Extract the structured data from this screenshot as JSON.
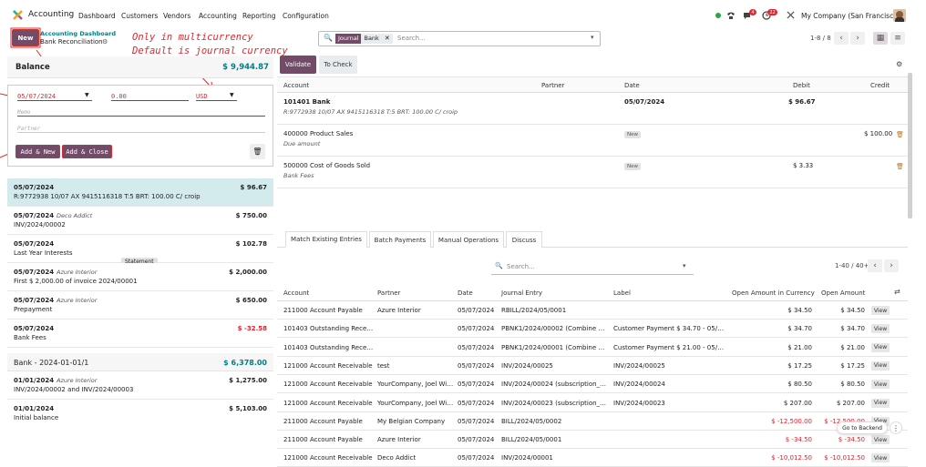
{
  "topbar": {
    "app_name": "Accounting",
    "menus": [
      "Dashboard",
      "Customers",
      "Vendors",
      "Accounting",
      "Reporting",
      "Configuration"
    ],
    "chat_badge": "4",
    "activity_badge": "22",
    "company": "My Company (San Francisco)"
  },
  "control": {
    "new_label": "New",
    "breadcrumb_parent": "Accounting Dashboard",
    "breadcrumb_current": "Bank Reconciliation",
    "annotation_line1": "Only in multicurrency",
    "annotation_line2": "Default is journal currency",
    "facet_label": "Journal",
    "facet_value": "Bank",
    "search_placeholder": "Search...",
    "pager": "1-8 / 8"
  },
  "left": {
    "balance_label": "Balance",
    "balance_value": "$ 9,944.87",
    "form": {
      "date": "05/07/2024",
      "amount": "0.00",
      "currency": "USD",
      "memo_placeholder": "Memo",
      "partner_placeholder": "Partner",
      "add_new": "Add & New",
      "add_close": "Add & Close"
    },
    "statements": [
      {
        "date": "05/07/2024",
        "partner": "",
        "label": "R:9772938 10/07 AX 9415116318 T:5 BRT: 100.00 C/ croip",
        "amount": "$ 96.67",
        "neg": false
      },
      {
        "date": "05/07/2024",
        "partner": "Deco Addict",
        "label": "INV/2024/00002",
        "amount": "$ 750.00",
        "neg": false
      },
      {
        "date": "05/07/2024",
        "partner": "",
        "label": "Last Year Interests",
        "amount": "$ 102.78",
        "neg": false
      },
      {
        "date": "05/07/2024",
        "partner": "Azure Interior",
        "label": "First $ 2,000.00 of invoice 2024/00001",
        "amount": "$ 2,000.00",
        "neg": false
      },
      {
        "date": "05/07/2024",
        "partner": "Azure Interior",
        "label": "Prepayment",
        "amount": "$ 650.00",
        "neg": false
      },
      {
        "date": "05/07/2024",
        "partner": "",
        "label": "Bank Fees",
        "amount": "$ -32.58",
        "neg": true
      }
    ],
    "statement_tag": "Statement",
    "group2_label": "Bank - 2024-01-01/1",
    "group2_value": "$ 6,378.00",
    "statements2": [
      {
        "date": "01/01/2024",
        "partner": "Azure Interior",
        "label": "INV/2024/00002 and INV/2024/00003",
        "amount": "$ 1,275.00",
        "neg": false
      },
      {
        "date": "01/01/2024",
        "partner": "",
        "label": "Initial balance",
        "amount": "$ 5,103.00",
        "neg": false
      }
    ]
  },
  "right": {
    "validate": "Validate",
    "to_check": "To Check",
    "headers": {
      "account": "Account",
      "partner": "Partner",
      "date": "Date",
      "debit": "Debit",
      "credit": "Credit"
    },
    "lines": [
      {
        "account": "101401 Bank",
        "sub": "R:9772938 10/07 AX 9415116318 T:5 BRT: 100.00 C/ croip",
        "date": "05/07/2024",
        "badge": "",
        "debit": "$ 96.67",
        "credit": "",
        "bold": true
      },
      {
        "account": "400000 Product Sales",
        "sub": "Due amount",
        "date": "",
        "badge": "New",
        "debit": "",
        "credit": "$ 100.00",
        "bold": false
      },
      {
        "account": "500000 Cost of Goods Sold",
        "sub": "Bank Fees",
        "date": "",
        "badge": "New",
        "debit": "$ 3.33",
        "credit": "",
        "bold": false
      }
    ],
    "tabs": [
      "Match Existing Entries",
      "Batch Payments",
      "Manual Operations",
      "Discuss"
    ],
    "match_search_placeholder": "Search...",
    "match_pager": "1-40 / 40+",
    "match_headers": {
      "account": "Account",
      "partner": "Partner",
      "date": "Date",
      "entry": "Journal Entry",
      "label": "Label",
      "open_cur": "Open Amount in Currency",
      "open": "Open Amount"
    },
    "view_label": "View",
    "match_rows": [
      {
        "account": "211000 Account Payable",
        "partner": "Azure Interior",
        "date": "05/07/2024",
        "entry": "RBILL/2024/05/0001",
        "label": "",
        "open_cur": "$ 34.50",
        "open": "$ 34.50",
        "neg": false
      },
      {
        "account": "101403 Outstanding Receipts",
        "partner": "",
        "date": "05/07/2024",
        "entry": "PBNK1/2024/00002 (Combine Ba...",
        "label": "Customer Payment $ 34.70 - 05/0...",
        "open_cur": "$ 34.70",
        "open": "$ 34.70",
        "neg": false
      },
      {
        "account": "101403 Outstanding Receipts",
        "partner": "",
        "date": "05/07/2024",
        "entry": "PBNK1/2024/00001 (Combine Ba...",
        "label": "Customer Payment $ 21.00 - 05/0...",
        "open_cur": "$ 21.00",
        "open": "$ 21.00",
        "neg": false
      },
      {
        "account": "121000 Account Receivable",
        "partner": "test",
        "date": "05/07/2024",
        "entry": "INV/2024/00025",
        "label": "INV/2024/00025",
        "open_cur": "$ 17.25",
        "open": "$ 17.25",
        "neg": false
      },
      {
        "account": "121000 Account Receivable",
        "partner": "YourCompany, Joel Willis",
        "date": "05/07/2024",
        "entry": "INV/2024/00024 (subscription_p...",
        "label": "INV/2024/00024",
        "open_cur": "$ 80.50",
        "open": "$ 80.50",
        "neg": false
      },
      {
        "account": "121000 Account Receivable",
        "partner": "YourCompany, Joel Willis",
        "date": "05/07/2024",
        "entry": "INV/2024/00023 (subscription_p...",
        "label": "INV/2024/00023",
        "open_cur": "$ 207.00",
        "open": "$ 207.00",
        "neg": false
      },
      {
        "account": "211000 Account Payable",
        "partner": "My Belgian Company",
        "date": "05/07/2024",
        "entry": "BILL/2024/05/0002",
        "label": "",
        "open_cur": "$ -12,500.00",
        "open": "$ -12,500.00",
        "neg": true
      },
      {
        "account": "211000 Account Payable",
        "partner": "Azure Interior",
        "date": "05/07/2024",
        "entry": "BILL/2024/05/0001",
        "label": "",
        "open_cur": "$ -34.50",
        "open": "$ -34.50",
        "neg": true
      },
      {
        "account": "121000 Account Receivable",
        "partner": "Deco Addict",
        "date": "05/07/2024",
        "entry": "INV/2024/00001",
        "label": "",
        "open_cur": "$ -10,012.50",
        "open": "$ -10,012.50",
        "neg": true
      }
    ],
    "go_backend": "Go to Backend"
  }
}
